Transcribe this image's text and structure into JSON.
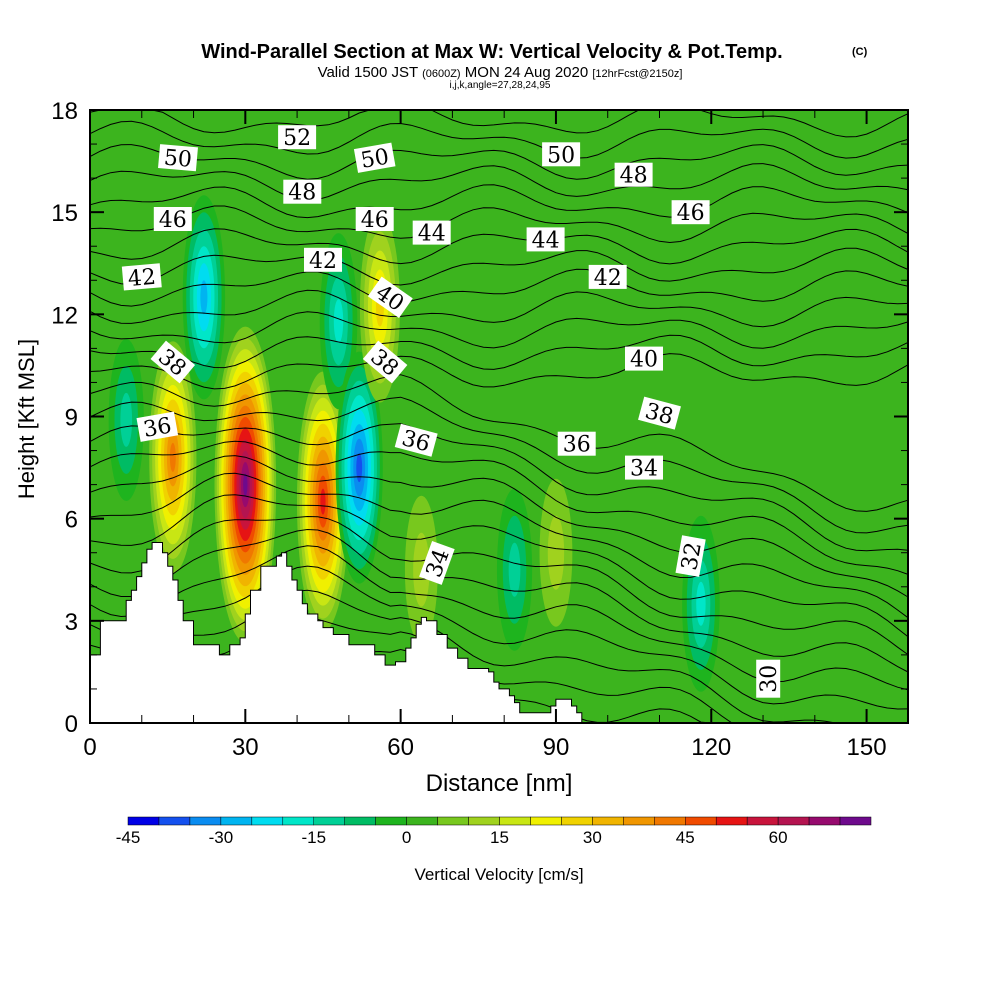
{
  "chart_data": {
    "type": "heatmap",
    "title": "Wind-Parallel Section at Max W: Vertical Velocity & Pot.Temp.",
    "copyright_mark": "(C)",
    "subtitle_parts": [
      "Valid 1500 JST",
      "(0600Z)",
      "MON 24 Aug 2020",
      "[12hrFcst@2150z]"
    ],
    "subtitle2": "i,j,k,angle=27,28,24,95",
    "xlabel": "Distance [nm]",
    "ylabel": "Height [Kft MSL]",
    "xlim": [
      0,
      158
    ],
    "ylim": [
      0,
      18
    ],
    "xticks": [
      0,
      30,
      60,
      90,
      120,
      150
    ],
    "yticks": [
      0,
      3,
      6,
      9,
      12,
      15,
      18
    ],
    "grid": false,
    "colorbar": {
      "label": "Vertical Velocity [cm/s]",
      "ticks": [
        -45,
        -30,
        -15,
        0,
        15,
        30,
        45,
        60
      ],
      "levels": [
        -45,
        -40,
        -35,
        -30,
        -25,
        -20,
        -15,
        -10,
        -5,
        0,
        5,
        10,
        15,
        20,
        25,
        30,
        35,
        40,
        45,
        50,
        55,
        60,
        65,
        70
      ],
      "colors": [
        "#0000e6",
        "#1450ee",
        "#0a8cf0",
        "#00b4f0",
        "#00dcf0",
        "#00e6c8",
        "#00d096",
        "#00bc64",
        "#1eb41e",
        "#3cb41e",
        "#78c81e",
        "#a0d21e",
        "#c8e614",
        "#f0f000",
        "#f0d200",
        "#f0b400",
        "#f09600",
        "#f07800",
        "#f04b00",
        "#e61414",
        "#c8143c",
        "#b41450",
        "#960a6e",
        "#6e0a8c"
      ]
    },
    "theta_contour_labels": [
      {
        "x": 17,
        "y": 16.6,
        "v": "50",
        "a": 5
      },
      {
        "x": 40,
        "y": 17.2,
        "v": "52",
        "a": 0
      },
      {
        "x": 55,
        "y": 16.6,
        "v": "50",
        "a": -10
      },
      {
        "x": 91,
        "y": 16.7,
        "v": "50",
        "a": 0
      },
      {
        "x": 105,
        "y": 16.1,
        "v": "48",
        "a": 0
      },
      {
        "x": 41,
        "y": 15.6,
        "v": "48",
        "a": 0
      },
      {
        "x": 16,
        "y": 14.8,
        "v": "46",
        "a": 0
      },
      {
        "x": 55,
        "y": 14.8,
        "v": "46",
        "a": 0
      },
      {
        "x": 116,
        "y": 15.0,
        "v": "46",
        "a": 0
      },
      {
        "x": 66,
        "y": 14.4,
        "v": "44",
        "a": 0
      },
      {
        "x": 88,
        "y": 14.2,
        "v": "44",
        "a": 0
      },
      {
        "x": 10,
        "y": 13.1,
        "v": "42",
        "a": -5
      },
      {
        "x": 45,
        "y": 13.6,
        "v": "42",
        "a": 0
      },
      {
        "x": 100,
        "y": 13.1,
        "v": "42",
        "a": 0
      },
      {
        "x": 58,
        "y": 12.5,
        "v": "40",
        "a": 35
      },
      {
        "x": 107,
        "y": 10.7,
        "v": "40",
        "a": 0
      },
      {
        "x": 16,
        "y": 10.6,
        "v": "38",
        "a": 40
      },
      {
        "x": 57,
        "y": 10.6,
        "v": "38",
        "a": 40
      },
      {
        "x": 110,
        "y": 9.1,
        "v": "38",
        "a": 15
      },
      {
        "x": 13,
        "y": 8.7,
        "v": "36",
        "a": -10
      },
      {
        "x": 63,
        "y": 8.3,
        "v": "36",
        "a": 15
      },
      {
        "x": 94,
        "y": 8.2,
        "v": "36",
        "a": 0
      },
      {
        "x": 107,
        "y": 7.5,
        "v": "34",
        "a": 0
      },
      {
        "x": 67,
        "y": 4.7,
        "v": "34",
        "a": -70
      },
      {
        "x": 116,
        "y": 4.9,
        "v": "32",
        "a": -80
      },
      {
        "x": 131,
        "y": 1.3,
        "v": "30",
        "a": -90
      }
    ],
    "terrain_kft": [
      [
        0,
        2
      ],
      [
        2,
        3
      ],
      [
        7,
        3.6
      ],
      [
        8,
        3.9
      ],
      [
        9,
        4.3
      ],
      [
        10,
        4.7
      ],
      [
        11,
        5.1
      ],
      [
        12,
        5.3
      ],
      [
        13,
        5.3
      ],
      [
        14,
        5.0
      ],
      [
        15,
        4.6
      ],
      [
        16,
        4.2
      ],
      [
        17,
        3.6
      ],
      [
        18,
        3.0
      ],
      [
        20,
        2.3
      ],
      [
        24,
        2.3
      ],
      [
        25,
        2.0
      ],
      [
        26,
        2.0
      ],
      [
        27,
        2.3
      ],
      [
        29,
        2.5
      ],
      [
        30,
        3.2
      ],
      [
        31,
        3.9
      ],
      [
        33,
        4.6
      ],
      [
        36,
        4.9
      ],
      [
        37,
        5.0
      ],
      [
        38,
        4.6
      ],
      [
        39,
        4.2
      ],
      [
        40,
        3.9
      ],
      [
        41,
        3.5
      ],
      [
        42,
        3.2
      ],
      [
        44,
        3.0
      ],
      [
        45,
        2.8
      ],
      [
        47,
        2.6
      ],
      [
        50,
        2.3
      ],
      [
        53,
        2.3
      ],
      [
        55,
        2.0
      ],
      [
        57,
        1.7
      ],
      [
        59,
        1.8
      ],
      [
        61,
        2.2
      ],
      [
        62,
        2.5
      ],
      [
        63,
        2.9
      ],
      [
        64,
        3.1
      ],
      [
        65,
        3.0
      ],
      [
        67,
        2.6
      ],
      [
        69,
        2.2
      ],
      [
        71,
        1.9
      ],
      [
        72,
        1.9
      ],
      [
        73,
        1.6
      ],
      [
        75,
        1.6
      ],
      [
        77,
        1.5
      ],
      [
        78,
        1.2
      ],
      [
        79,
        1.0
      ],
      [
        81,
        0.8
      ],
      [
        82,
        0.6
      ],
      [
        83,
        0.3
      ],
      [
        88,
        0.3
      ],
      [
        89,
        0.5
      ],
      [
        90,
        0.7
      ],
      [
        91,
        0.7
      ],
      [
        93,
        0.5
      ],
      [
        94,
        0.3
      ],
      [
        95,
        0.0
      ],
      [
        158,
        0.0
      ]
    ],
    "updraft_cores_cm_s": [
      {
        "x": 7,
        "z": 8.9,
        "w": -15
      },
      {
        "x": 16,
        "z": 7.8,
        "w": 40
      },
      {
        "x": 22,
        "z": 12.5,
        "w": -30
      },
      {
        "x": 30,
        "z": 7.0,
        "w": 70
      },
      {
        "x": 45,
        "z": 6.5,
        "w": 50
      },
      {
        "x": 48,
        "z": 11.8,
        "w": -20
      },
      {
        "x": 52,
        "z": 7.5,
        "w": -40
      },
      {
        "x": 56,
        "z": 12.2,
        "w": 25
      },
      {
        "x": 64,
        "z": 4.5,
        "w": 12
      },
      {
        "x": 82,
        "z": 4.5,
        "w": -15
      },
      {
        "x": 90,
        "z": 5.0,
        "w": 10
      },
      {
        "x": 118,
        "z": 3.5,
        "w": -20
      }
    ]
  }
}
